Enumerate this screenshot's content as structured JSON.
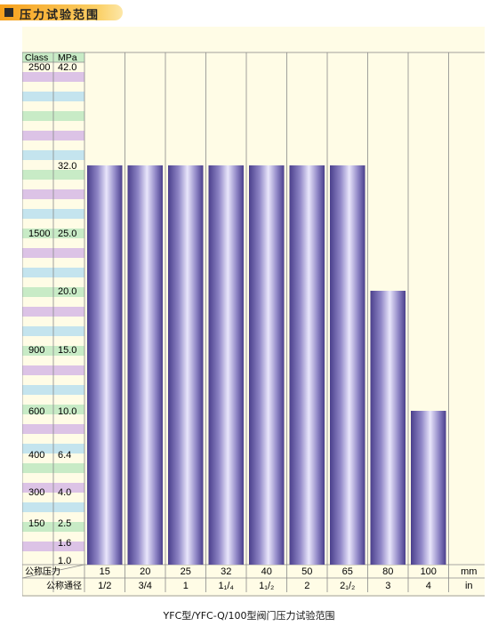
{
  "header": {
    "title": "压力试验范围"
  },
  "caption": "YFC型/YFC-Q/100型阀门压力试验范围",
  "chart_data": {
    "type": "bar",
    "title": "压力试验范围",
    "ylim": [
      1.0,
      42.0
    ],
    "y_ticks_mpa": [
      "42.0",
      "32.0",
      "25.0",
      "20.0",
      "15.0",
      "10.0",
      "6.4",
      "4.0",
      "2.5",
      "1.6",
      "1.0"
    ],
    "y_ticks_class": [
      "2500",
      "",
      "1500",
      "",
      "900",
      "600",
      "400",
      "300",
      "150",
      "",
      ""
    ],
    "y_header": {
      "class": "Class",
      "mpa": "MPa"
    },
    "x_row_label_dn": "公称压力",
    "x_row_label_nps": "公称通径",
    "categories": [
      "15",
      "20",
      "25",
      "32",
      "40",
      "50",
      "65",
      "80",
      "100"
    ],
    "categories_in": [
      "1/2",
      "3/4",
      "1",
      "1₁/₄",
      "1₁/₂",
      "2",
      "2₁/₂",
      "3",
      "4"
    ],
    "unit_mm": "mm",
    "unit_in": "in",
    "values": [
      32.0,
      32.0,
      32.0,
      32.0,
      32.0,
      32.0,
      32.0,
      20.0,
      10.0
    ],
    "grid": true
  }
}
